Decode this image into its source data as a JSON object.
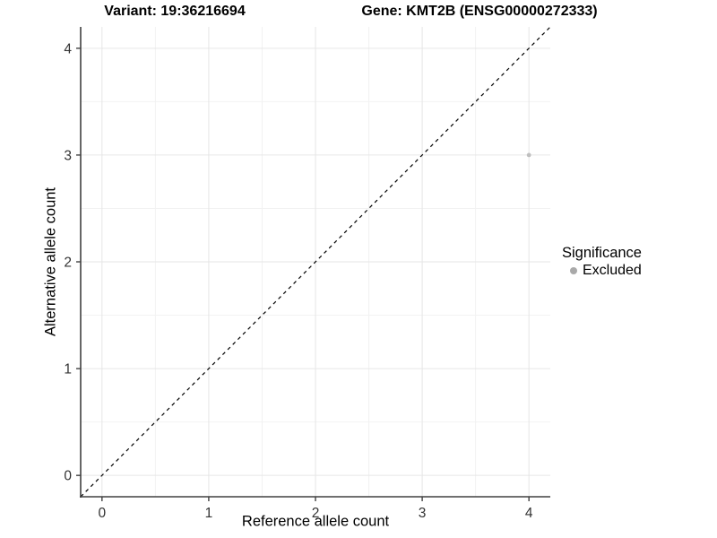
{
  "titles": {
    "variant": "Variant: 19:36216694",
    "gene": "Gene: KMT2B (ENSG00000272333)"
  },
  "chart_data": {
    "type": "scatter",
    "xlabel": "Reference allele count",
    "ylabel": "Alternative allele count",
    "xlim": [
      -0.2,
      4.2
    ],
    "ylim": [
      -0.2,
      4.2
    ],
    "x_ticks": [
      0,
      1,
      2,
      3,
      4
    ],
    "y_ticks": [
      0,
      1,
      2,
      3,
      4
    ],
    "x_minor_ticks": [
      0.5,
      1.5,
      2.5,
      3.5
    ],
    "y_minor_ticks": [
      0.5,
      1.5,
      2.5,
      3.5
    ],
    "grid": true,
    "points": [
      {
        "x": 4,
        "y": 3,
        "significance": "Excluded"
      }
    ],
    "reference_line": {
      "type": "identity",
      "from": [
        -0.2,
        -0.2
      ],
      "to": [
        4.2,
        4.2
      ],
      "style": "dashed"
    },
    "legend": {
      "title": "Significance",
      "position": "right",
      "items": [
        {
          "label": "Excluded",
          "color": "#b3b3b3"
        }
      ]
    },
    "colors": {
      "point": "#bfbfbf",
      "legend_key": "#a9a9a9",
      "grid_major": "#e6e6e6",
      "grid_minor": "#f2f2f2",
      "axis_line": "#404040",
      "tick": "#404040",
      "reference_line": "#000000"
    }
  }
}
